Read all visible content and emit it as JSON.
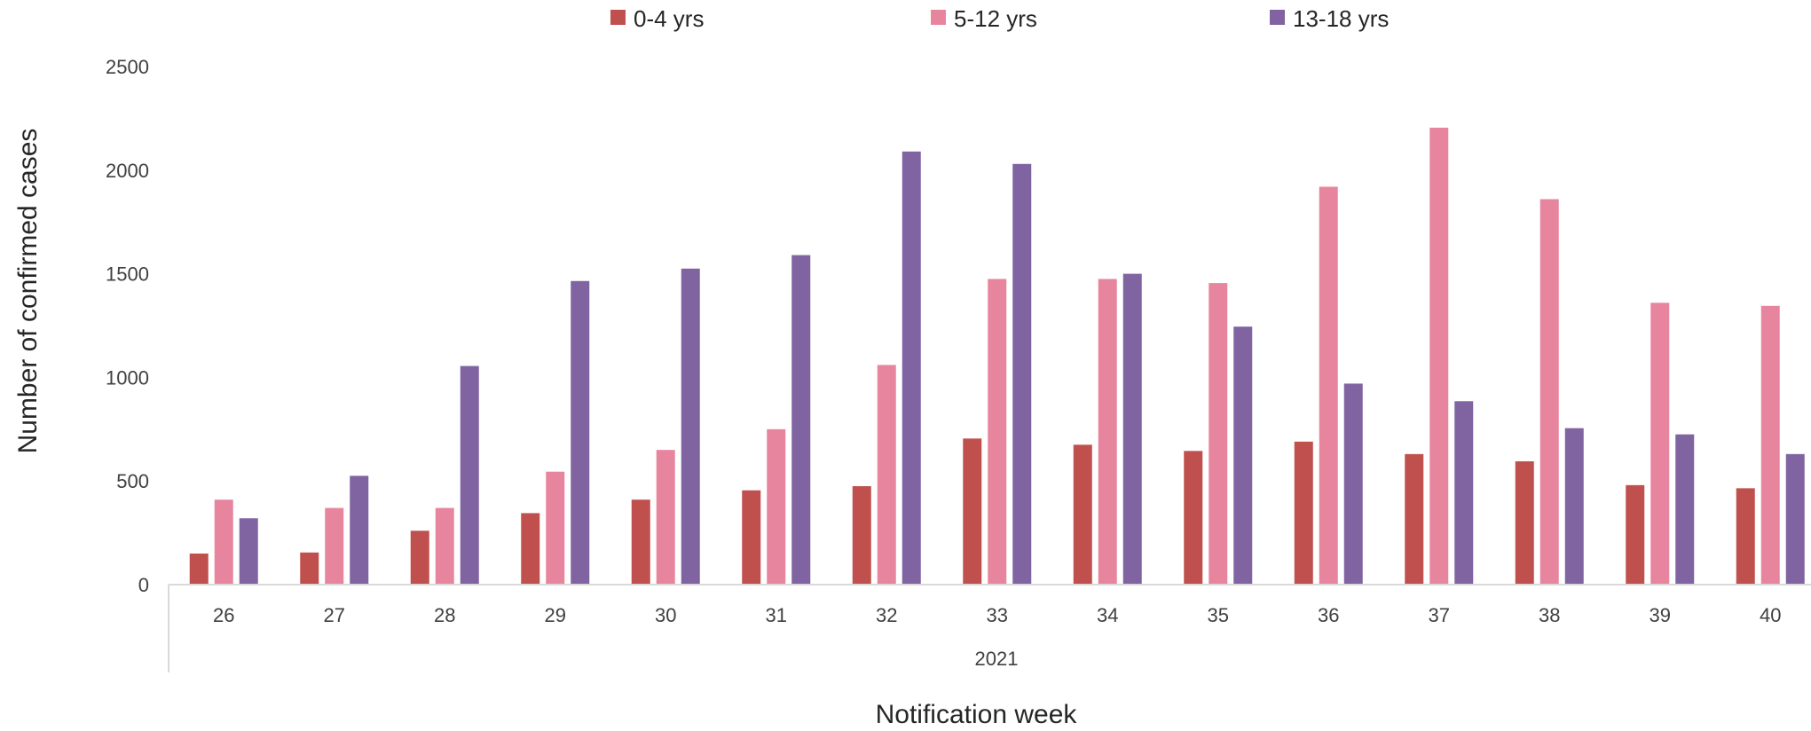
{
  "chart_data": {
    "type": "bar",
    "title": "",
    "xlabel": "Notification week",
    "ylabel": "Number of confirmed cases",
    "group_label": "2021",
    "categories": [
      "26",
      "27",
      "28",
      "29",
      "30",
      "31",
      "32",
      "33",
      "34",
      "35",
      "36",
      "37",
      "38",
      "39",
      "40"
    ],
    "series": [
      {
        "name": "0-4 yrs",
        "color": "#c0504d",
        "values": [
          150,
          155,
          260,
          345,
          410,
          455,
          475,
          705,
          675,
          645,
          690,
          630,
          595,
          480,
          465
        ]
      },
      {
        "name": "5-12 yrs",
        "color": "#e8859e",
        "values": [
          410,
          370,
          370,
          545,
          650,
          750,
          1060,
          1475,
          1475,
          1455,
          1920,
          2205,
          1860,
          1360,
          1345
        ]
      },
      {
        "name": "13-18 yrs",
        "color": "#8064a2",
        "values": [
          320,
          525,
          1055,
          1465,
          1525,
          1590,
          2090,
          2030,
          1500,
          1245,
          970,
          885,
          755,
          725,
          630
        ]
      }
    ],
    "ylim": [
      0,
      2500
    ],
    "yticks": [
      0,
      500,
      1000,
      1500,
      2000,
      2500
    ],
    "legend": "top",
    "grid": false
  }
}
